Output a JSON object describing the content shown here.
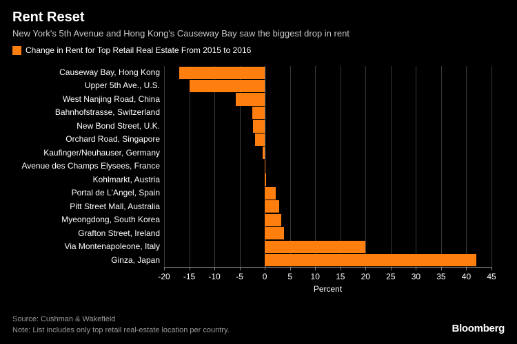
{
  "title": "Rent Reset",
  "subtitle": "New York's 5th Avenue and Hong Kong's Causeway Bay saw the biggest drop in rent",
  "legend": {
    "color": "#ff7f0e",
    "label": "Change in Rent for Top Retail Real Estate From 2015 to 2016"
  },
  "chart": {
    "type": "bar",
    "orientation": "horizontal",
    "background_color": "#000000",
    "bar_color": "#ff7f0e",
    "grid_color": "#3a3a3a",
    "axis_color": "#808080",
    "text_color": "#ffffff",
    "xlim": [
      -20,
      45
    ],
    "xtick_step": 5,
    "xticks": [
      -20,
      -15,
      -10,
      -5,
      0,
      5,
      10,
      15,
      20,
      25,
      30,
      35,
      40,
      45
    ],
    "xlabel": "Percent",
    "label_fontsize": 12,
    "bar_gap_ratio": 0.03,
    "categories": [
      "Causeway Bay, Hong Kong",
      "Upper 5th Ave., U.S.",
      "West Nanjing Road, China",
      "Bahnhofstrasse, Switzerland",
      "New Bond Street, U.K.",
      "Orchard Road, Singapore",
      "Kaufinger/Neuhauser, Germany",
      "Avenue des Champs Elysees, France",
      "Kohlmarkt, Austria",
      "Portal de L'Angel, Spain",
      "Pitt Street Mall, Australia",
      "Myeongdong, South Korea",
      "Grafton Street, Ireland",
      "Via Montenapoleone, Italy",
      "Ginza, Japan"
    ],
    "values": [
      -17.0,
      -15.0,
      -5.8,
      -2.5,
      -2.3,
      -2.0,
      -0.5,
      0.1,
      0.3,
      2.2,
      2.8,
      3.2,
      3.8,
      20.0,
      42.0
    ]
  },
  "footer": {
    "source": "Source: Cushman & Wakefield",
    "note": "Note: List includes only top retail real-estate location per country."
  },
  "brand": "Bloomberg",
  "brand_color": "#ffffff"
}
